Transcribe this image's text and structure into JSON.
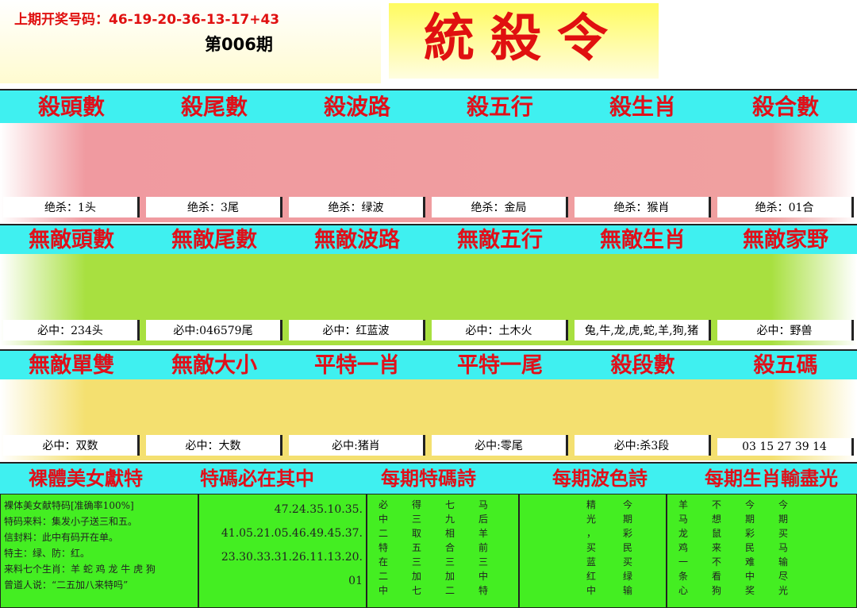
{
  "header": {
    "last_draw": "上期开奖号码：46-19-20-36-13-17+43",
    "issue": "第006期",
    "logo": "統殺令"
  },
  "sections": [
    {
      "headings": [
        "殺頭數",
        "殺尾數",
        "殺波路",
        "殺五行",
        "殺生肖",
        "殺合數"
      ],
      "values": [
        "绝杀：1头",
        "绝杀：3尾",
        "绝杀：绿波",
        "绝杀：金局",
        "绝杀：猴肖",
        "绝杀：01合"
      ]
    },
    {
      "headings": [
        "無敵頭數",
        "無敵尾數",
        "無敵波路",
        "無敵五行",
        "無敵生肖",
        "無敵家野"
      ],
      "values": [
        "必中：234头",
        "必中:046579尾",
        "必中：红蓝波",
        "必中：土木火",
        "兔,牛,龙,虎,蛇,羊,狗,猪",
        "必中：野兽"
      ]
    },
    {
      "headings": [
        "無敵單雙",
        "無敵大小",
        "平特一肖",
        "平特一尾",
        "殺段數",
        "殺五碼"
      ],
      "values": [
        "必中：双数",
        "必中：大数",
        "必中:猪肖",
        "必中:零尾",
        "必中:杀3段",
        "03 15 27 39 14"
      ]
    }
  ],
  "panels": {
    "headings": [
      "裸體美女獻特",
      "特碼必在其中",
      "每期特碼詩",
      "每期波色詩",
      "每期生肖輸盡光"
    ],
    "texts": [
      [
        "裸体美女献特码[准确率100%]",
        "特码来料：集发小子送三和五。",
        "信封料：此中有码开在单。",
        "特主：绿、防：红。",
        "来料七个生肖：羊 蛇 鸡 龙 牛 虎 狗",
        "曾道人说：“二五加八来特吗”"
      ],
      [
        "47.24.35.10.35.",
        "41.05.21.05.46.49.45.37.",
        "23.30.33.31.26.11.13.20.",
        "01"
      ],
      [
        "必得七马",
        "中三九后",
        "二取相羊",
        "特五合前",
        "在三三三",
        "二加加中",
        "中七二特"
      ],
      [
        "精今",
        "光期",
        "，彩",
        "买民",
        "蓝买",
        "红绿",
        "中输"
      ],
      [
        "羊不今今",
        "马想期期",
        "龙鼠彩买",
        "鸡来民马",
        "一不难输",
        "条看中尽",
        "心狗奖光"
      ]
    ]
  }
}
